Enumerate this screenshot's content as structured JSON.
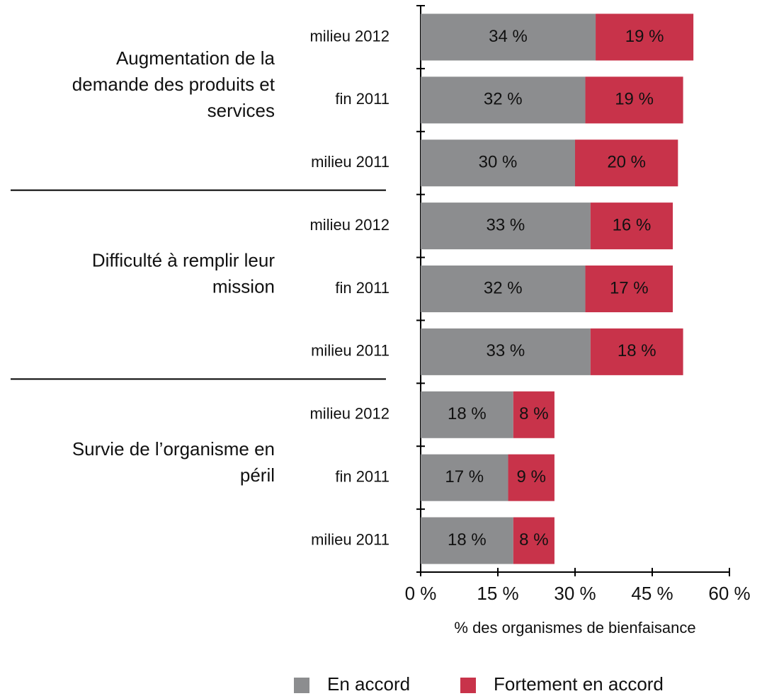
{
  "chart_data": {
    "type": "stacked_barh",
    "categories": [
      "milieu 2012",
      "fin 2011",
      "milieu 2011",
      "milieu 2012",
      "fin 2011",
      "milieu 2011",
      "milieu 2012",
      "fin 2011",
      "milieu 2011"
    ],
    "groups": [
      [
        "Augmentation de la",
        "demande des produits et",
        "services"
      ],
      [
        "Difficulté à remplir leur",
        "mission"
      ],
      [
        "Survie de l’organisme en",
        "péril"
      ]
    ],
    "series": [
      {
        "name": "En accord",
        "color": "#8c8d8f",
        "values": [
          34,
          32,
          30,
          33,
          32,
          33,
          18,
          17,
          18
        ],
        "value_labels": [
          "34 %",
          "32 %",
          "30 %",
          "33 %",
          "32 %",
          "33 %",
          "18 %",
          "17 %",
          "18 %"
        ]
      },
      {
        "name": "Fortement en accord",
        "color": "#c8334a",
        "values": [
          19,
          19,
          20,
          16,
          17,
          18,
          8,
          9,
          8
        ],
        "value_labels": [
          "19 %",
          "19 %",
          "20 %",
          "16 %",
          "17 %",
          "18 %",
          "8 %",
          "9 %",
          "8 %"
        ]
      }
    ],
    "xlabel": "% des organismes de bienfaisance",
    "xlim": [
      0,
      60
    ],
    "xticks": [
      {
        "value": 0,
        "label": "0 %"
      },
      {
        "value": 15,
        "label": "15 %"
      },
      {
        "value": 30,
        "label": "30 %"
      },
      {
        "value": 45,
        "label": "45 %"
      },
      {
        "value": 60,
        "label": "60 %"
      }
    ],
    "legend": "bottom"
  }
}
